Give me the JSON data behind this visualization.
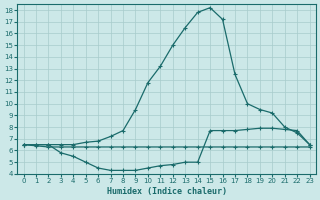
{
  "xlabel": "Humidex (Indice chaleur)",
  "bg_color": "#cce8e8",
  "grid_color": "#a8cccc",
  "line_color": "#1a6b6b",
  "xlim": [
    -0.5,
    23.5
  ],
  "ylim": [
    4,
    18.5
  ],
  "xticks": [
    0,
    1,
    2,
    3,
    4,
    5,
    6,
    7,
    8,
    9,
    10,
    11,
    12,
    13,
    14,
    15,
    16,
    17,
    18,
    19,
    20,
    21,
    22,
    23
  ],
  "yticks": [
    4,
    5,
    6,
    7,
    8,
    9,
    10,
    11,
    12,
    13,
    14,
    15,
    16,
    17,
    18
  ],
  "line1_x": [
    0,
    1,
    2,
    3,
    4,
    5,
    6,
    7,
    8,
    9,
    10,
    11,
    12,
    13,
    14,
    15,
    16,
    17,
    18,
    19,
    20,
    21,
    22,
    23
  ],
  "line1_y": [
    6.5,
    6.4,
    6.3,
    6.3,
    6.3,
    6.3,
    6.3,
    6.3,
    6.3,
    6.3,
    6.3,
    6.3,
    6.3,
    6.3,
    6.3,
    6.3,
    6.3,
    6.3,
    6.3,
    6.3,
    6.3,
    6.3,
    6.3,
    6.3
  ],
  "line2_x": [
    0,
    1,
    2,
    3,
    4,
    5,
    6,
    7,
    8,
    9,
    10,
    11,
    12,
    13,
    14,
    15,
    16,
    17,
    18,
    19,
    20,
    21,
    22,
    23
  ],
  "line2_y": [
    6.5,
    6.5,
    6.5,
    5.8,
    5.5,
    5.0,
    4.5,
    4.3,
    4.3,
    4.3,
    4.5,
    4.7,
    4.8,
    5.0,
    5.0,
    7.7,
    7.7,
    7.7,
    7.8,
    7.9,
    7.9,
    7.8,
    7.7,
    6.5
  ],
  "line3_x": [
    0,
    1,
    2,
    3,
    4,
    5,
    6,
    7,
    8,
    9,
    10,
    11,
    12,
    13,
    14,
    15,
    16,
    17,
    18,
    19,
    20,
    21,
    22,
    23
  ],
  "line3_y": [
    6.5,
    6.5,
    6.5,
    6.5,
    6.5,
    6.7,
    6.8,
    7.2,
    7.7,
    9.5,
    11.8,
    13.2,
    15.0,
    16.5,
    17.8,
    18.2,
    17.2,
    12.5,
    10.0,
    9.5,
    9.2,
    8.0,
    7.5,
    6.5
  ]
}
